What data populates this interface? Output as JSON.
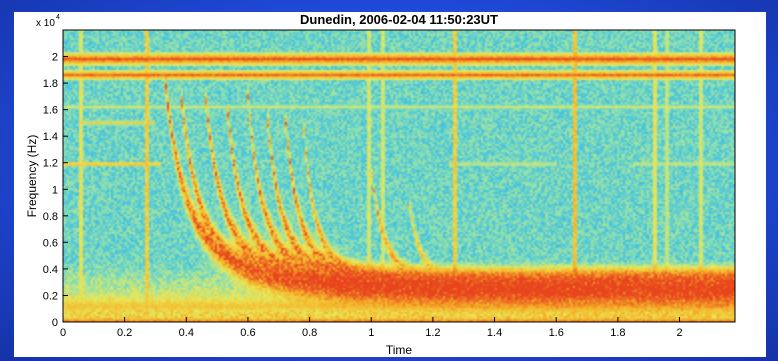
{
  "chart_data": {
    "type": "heatmap",
    "title": "Dunedin, 2006-02-04  11:50:23UT",
    "xlabel": "Time",
    "ylabel": "Frequency (Hz)",
    "y_multiplier": "x 10",
    "y_multiplier_exp": "4",
    "xlim": [
      0,
      2.18
    ],
    "ylim": [
      0,
      2.2
    ],
    "x_ticks": [
      "0",
      "0.2",
      "0.4",
      "0.6",
      "0.8",
      "1",
      "1.2",
      "1.4",
      "1.6",
      "1.8",
      "2"
    ],
    "y_ticks": [
      "0",
      "0.2",
      "0.4",
      "0.6",
      "0.8",
      "1",
      "1.2",
      "1.4",
      "1.6",
      "1.8",
      "2"
    ],
    "colormap": [
      "#1e90d8",
      "#45c3e0",
      "#8fe0b0",
      "#e8e85a",
      "#f5b52a",
      "#e8441e"
    ],
    "background_intensity": 0.32,
    "horizontal_bands": [
      {
        "y": 1.98,
        "intensity": 1.0,
        "width": 0.05
      },
      {
        "y": 1.86,
        "intensity": 0.95,
        "width": 0.04
      },
      {
        "y": 1.62,
        "intensity": 0.55,
        "width": 0.02
      },
      {
        "y": 1.19,
        "x0": 0.0,
        "x1": 0.32,
        "intensity": 0.85,
        "width": 0.02
      },
      {
        "y": 1.5,
        "x0": 0.05,
        "x1": 0.3,
        "intensity": 0.7,
        "width": 0.02
      },
      {
        "y": 1.19,
        "x0": 1.25,
        "x1": 1.6,
        "intensity": 0.6,
        "width": 0.02
      },
      {
        "y": 1.19,
        "x0": 1.85,
        "x1": 2.18,
        "intensity": 0.6,
        "width": 0.02
      },
      {
        "y": 0.12,
        "intensity": 0.75,
        "width": 0.12
      },
      {
        "y": 0.0,
        "intensity": 0.95,
        "width": 0.05
      }
    ],
    "vertical_lines": [
      {
        "x": 0.06,
        "intensity": 0.6
      },
      {
        "x": 0.27,
        "intensity": 0.7
      },
      {
        "x": 0.99,
        "intensity": 0.55
      },
      {
        "x": 1.04,
        "intensity": 0.55
      },
      {
        "x": 1.27,
        "intensity": 0.7
      },
      {
        "x": 1.66,
        "intensity": 0.75
      },
      {
        "x": 1.92,
        "intensity": 0.6
      },
      {
        "x": 1.96,
        "intensity": 0.5
      },
      {
        "x": 2.07,
        "intensity": 0.55
      }
    ],
    "whistlers": [
      {
        "t0": 0.33,
        "spread": 0.82,
        "x0": 0.12,
        "fmax": 1.85,
        "intensity": 1.0,
        "width": 0.05
      },
      {
        "t0": 0.38,
        "spread": 0.72,
        "x0": 0.12,
        "fmax": 1.8,
        "intensity": 0.95,
        "width": 0.045
      },
      {
        "t0": 0.46,
        "spread": 0.7,
        "x0": 0.12,
        "fmax": 1.75,
        "intensity": 0.95,
        "width": 0.045
      },
      {
        "t0": 0.53,
        "spread": 0.62,
        "x0": 0.14,
        "fmax": 1.7,
        "intensity": 0.95,
        "width": 0.04
      },
      {
        "t0": 0.6,
        "spread": 0.58,
        "x0": 0.14,
        "fmax": 1.7,
        "intensity": 0.95,
        "width": 0.04
      },
      {
        "t0": 0.66,
        "spread": 0.52,
        "x0": 0.16,
        "fmax": 1.65,
        "intensity": 0.95,
        "width": 0.04
      },
      {
        "t0": 0.72,
        "spread": 0.5,
        "x0": 0.16,
        "fmax": 1.6,
        "intensity": 0.95,
        "width": 0.04
      },
      {
        "t0": 0.78,
        "spread": 0.45,
        "x0": 0.16,
        "fmax": 1.5,
        "intensity": 0.9,
        "width": 0.035
      },
      {
        "t0": 1.0,
        "spread": 0.55,
        "x0": 0.12,
        "fmax": 1.15,
        "intensity": 0.85,
        "width": 0.03
      },
      {
        "t0": 1.12,
        "spread": 0.5,
        "x0": 0.12,
        "fmax": 0.95,
        "intensity": 0.8,
        "width": 0.03
      }
    ],
    "grid": false,
    "legend": "none"
  }
}
